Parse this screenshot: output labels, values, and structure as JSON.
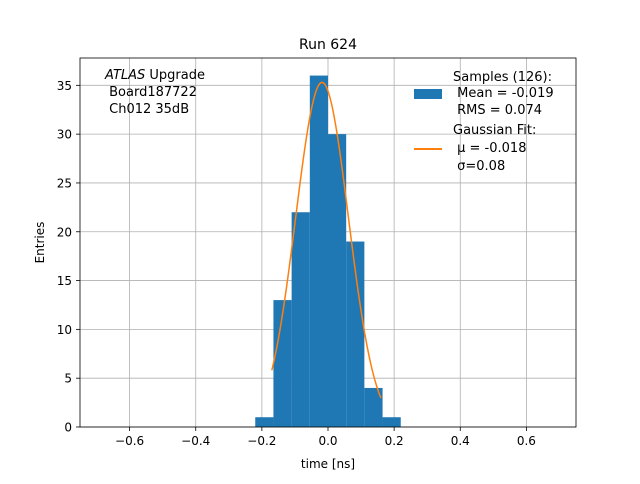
{
  "chart_data": {
    "type": "bar",
    "title": "Run 624",
    "xlabel": "time [ns]",
    "ylabel": "Entries",
    "xlim": [
      -0.75,
      0.75
    ],
    "ylim": [
      0,
      37.8
    ],
    "grid": true,
    "xticks": [
      -0.6,
      -0.4,
      -0.2,
      0.0,
      0.2,
      0.4,
      0.6
    ],
    "xtick_labels": [
      "−0.6",
      "−0.4",
      "−0.2",
      "0.0",
      "0.2",
      "0.4",
      "0.6"
    ],
    "yticks": [
      0,
      5,
      10,
      15,
      20,
      25,
      30,
      35
    ],
    "ytick_labels": [
      "0",
      "5",
      "10",
      "15",
      "20",
      "25",
      "30",
      "35"
    ],
    "histogram": {
      "name": "Samples (126):",
      "color": "#1f77b4",
      "bin_edges": [
        -0.22,
        -0.165,
        -0.11,
        -0.055,
        0.0,
        0.055,
        0.11,
        0.165,
        0.22
      ],
      "counts": [
        1,
        13,
        22,
        36,
        30,
        19,
        4,
        1
      ]
    },
    "bins_visible": [
      {
        "x0": -0.22,
        "x1": -0.165,
        "count": 1
      },
      {
        "x0": -0.165,
        "x1": -0.11,
        "count": 13
      },
      {
        "x0": -0.11,
        "x1": -0.055,
        "count": 22
      },
      {
        "x0": -0.055,
        "x1": 0.0,
        "count": 36
      },
      {
        "x0": 0.0,
        "x1": 0.055,
        "count": 30
      },
      {
        "x0": 0.055,
        "x1": 0.11,
        "count": 19
      },
      {
        "x0": 0.11,
        "x1": 0.165,
        "count": 4
      },
      {
        "x0": 0.165,
        "x1": 0.22,
        "count": 1
      }
    ],
    "fit": {
      "name": "Gaussian Fit:",
      "color": "#ff7f0e",
      "mu": -0.018,
      "sigma": 0.08,
      "amplitude": 35.3,
      "x_range": [
        -0.17,
        0.16
      ]
    },
    "legend": {
      "placement": "top-right",
      "entries": [
        {
          "lines": [
            "Samples (126):",
            " Mean = -0.019",
            " RMS = 0.074"
          ]
        },
        {
          "lines": [
            "Gaussian Fit:",
            " μ = -0.018",
            " σ=0.08"
          ]
        }
      ]
    },
    "annotation": {
      "placement": "top-left",
      "italic": "ATLAS",
      "rest": " Upgrade",
      "lines": [
        " Board187722",
        " Ch012 35dB"
      ]
    }
  }
}
